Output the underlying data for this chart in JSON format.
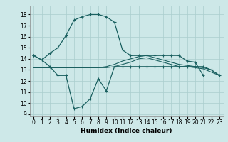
{
  "xlabel": "Humidex (Indice chaleur)",
  "background_color": "#cde8e8",
  "grid_color": "#aacece",
  "line_color": "#1a6060",
  "xlim": [
    -0.5,
    23.5
  ],
  "ylim": [
    8.8,
    18.8
  ],
  "yticks": [
    9,
    10,
    11,
    12,
    13,
    14,
    15,
    16,
    17,
    18
  ],
  "xticks": [
    0,
    1,
    2,
    3,
    4,
    5,
    6,
    7,
    8,
    9,
    10,
    11,
    12,
    13,
    14,
    15,
    16,
    17,
    18,
    19,
    20,
    21,
    22,
    23
  ],
  "line_max_x": [
    0,
    1,
    2,
    3,
    4,
    5,
    6,
    7,
    8,
    9,
    10,
    11,
    12,
    13,
    14,
    15,
    16,
    17,
    18,
    19,
    20,
    21
  ],
  "line_max_y": [
    14.3,
    13.9,
    14.5,
    15.0,
    16.1,
    17.5,
    17.8,
    18.0,
    18.0,
    17.8,
    17.3,
    14.8,
    14.3,
    14.3,
    14.3,
    14.3,
    14.3,
    14.3,
    14.3,
    13.8,
    13.7,
    12.5
  ],
  "line_min_x": [
    0,
    1,
    2,
    3,
    4,
    5,
    6,
    7,
    8,
    9,
    10,
    11,
    12,
    13,
    14,
    15,
    16,
    17,
    18,
    19,
    20,
    21,
    22,
    23
  ],
  "line_min_y": [
    14.3,
    13.9,
    13.3,
    12.5,
    12.5,
    9.5,
    9.7,
    10.4,
    12.2,
    11.1,
    13.3,
    13.3,
    13.3,
    13.3,
    13.3,
    13.3,
    13.3,
    13.3,
    13.3,
    13.3,
    13.3,
    13.3,
    13.0,
    12.5
  ],
  "line_avg1_x": [
    0,
    1,
    2,
    3,
    4,
    5,
    6,
    7,
    8,
    9,
    10,
    11,
    12,
    13,
    14,
    15,
    16,
    17,
    18,
    19,
    20,
    21,
    22,
    23
  ],
  "line_avg1_y": [
    13.2,
    13.2,
    13.2,
    13.2,
    13.2,
    13.2,
    13.2,
    13.2,
    13.2,
    13.3,
    13.5,
    13.8,
    14.0,
    14.2,
    14.3,
    14.1,
    13.9,
    13.7,
    13.5,
    13.4,
    13.3,
    13.2,
    13.0,
    12.5
  ],
  "line_avg2_x": [
    0,
    1,
    2,
    3,
    4,
    5,
    6,
    7,
    8,
    9,
    10,
    11,
    12,
    13,
    14,
    15,
    16,
    17,
    18,
    19,
    20,
    21,
    22,
    23
  ],
  "line_avg2_y": [
    13.2,
    13.2,
    13.2,
    13.2,
    13.2,
    13.2,
    13.2,
    13.2,
    13.2,
    13.2,
    13.3,
    13.5,
    13.7,
    14.0,
    14.1,
    13.9,
    13.7,
    13.5,
    13.3,
    13.3,
    13.2,
    13.1,
    12.8,
    12.5
  ]
}
